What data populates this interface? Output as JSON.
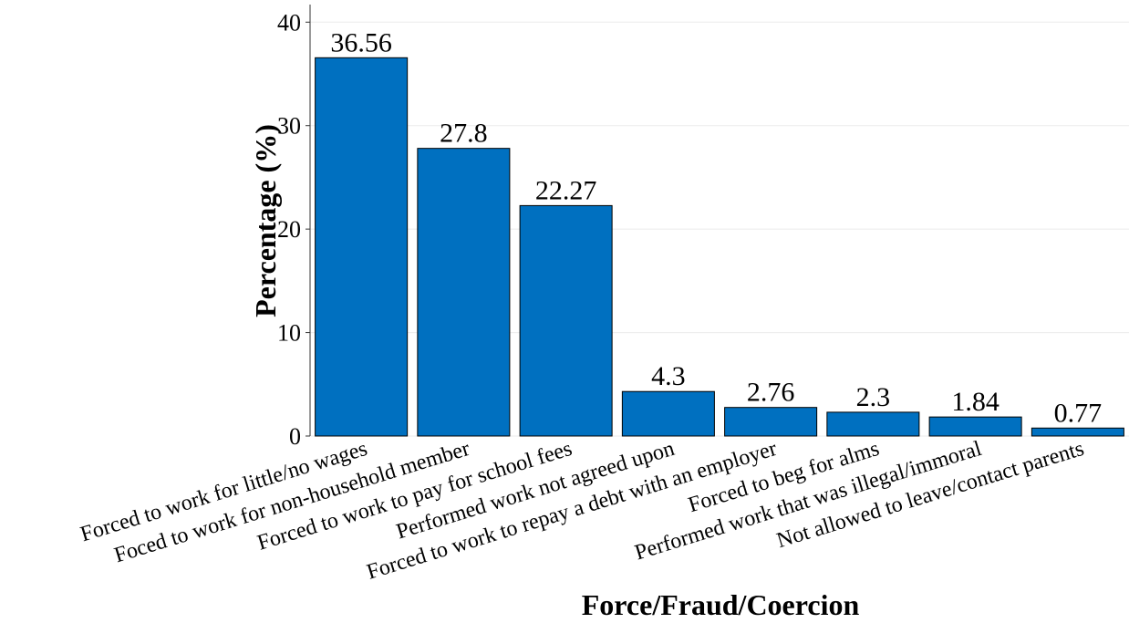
{
  "chart_data": {
    "type": "bar",
    "x_label": "Force/Fraud/Coercion",
    "y_label": "Percentage (%)",
    "categories": [
      "Forced to work for little/no wages",
      "Foced to work for non-household member",
      "Forced to work to pay for school fees",
      "Performed work not agreed upon",
      "Forced to work to repay a debt with an employer",
      "Forced to beg for alms",
      "Performed work that was illegal/immoral",
      "Not allowed to leave/contact parents"
    ],
    "values": [
      36.56,
      27.8,
      22.27,
      4.3,
      2.76,
      2.3,
      1.84,
      0.77
    ],
    "color": "#0070c0",
    "ylim": [
      0,
      41.7
    ],
    "yticks": [
      0,
      10,
      20,
      30,
      40
    ],
    "grid": true
  }
}
